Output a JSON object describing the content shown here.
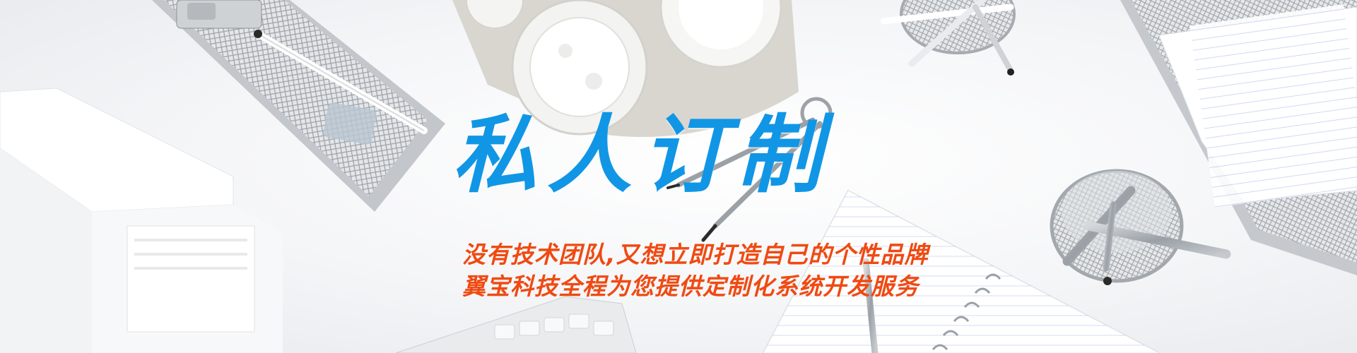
{
  "banner": {
    "headline": "私人订制",
    "tagline_line1": "没有技术团队,又想立即打造自己的个性品牌",
    "tagline_line2": "翼宝科技全程为您提供定制化系统开发服务"
  },
  "colors": {
    "headline": "#1196e6",
    "tagline": "#ef4a12",
    "background": "#f3f4f6"
  }
}
